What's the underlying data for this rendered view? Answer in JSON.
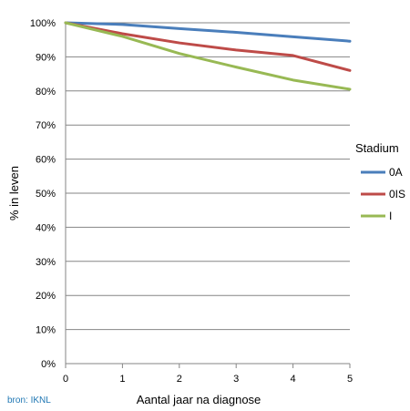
{
  "chart_data": {
    "type": "line",
    "xlabel": "Aantal jaar na diagnose",
    "ylabel": "% in leven",
    "x": [
      0,
      1,
      2,
      3,
      4,
      5
    ],
    "x_ticks": [
      "0",
      "1",
      "2",
      "3",
      "4",
      "5"
    ],
    "xlim": [
      0,
      5
    ],
    "ylim": [
      0,
      100
    ],
    "y_ticks": [
      "0%",
      "10%",
      "20%",
      "30%",
      "40%",
      "50%",
      "60%",
      "70%",
      "80%",
      "90%",
      "100%"
    ],
    "grid": "horizontal",
    "legend": {
      "title": "Stadium",
      "placement": "right"
    },
    "series": [
      {
        "name": "0A",
        "color": "#4a7ebb",
        "values": [
          100,
          99.5,
          98.3,
          97.2,
          95.9,
          94.6
        ]
      },
      {
        "name": "0IS",
        "color": "#be4b48",
        "values": [
          100,
          96.8,
          94.1,
          92.0,
          90.4,
          86.0
        ]
      },
      {
        "name": "I",
        "color": "#98b954",
        "values": [
          100,
          96.0,
          91.0,
          87.0,
          83.2,
          80.5
        ]
      }
    ]
  },
  "source": "bron: IKNL"
}
